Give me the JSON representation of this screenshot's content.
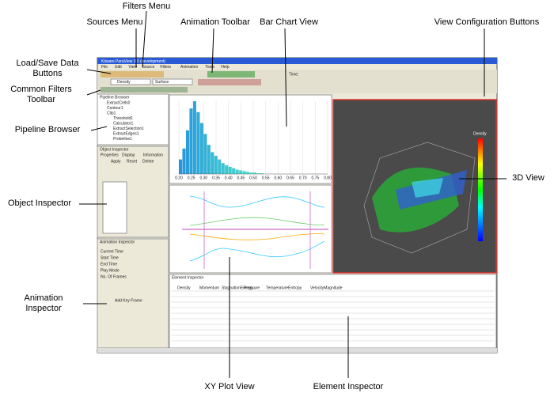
{
  "annotations": {
    "filters_menu": "Filters Menu",
    "sources_menu": "Sources Menu",
    "animation_toolbar": "Animation Toolbar",
    "bar_chart_view": "Bar Chart View",
    "view_config": "View Configuration Buttons",
    "load_save": "Load/Save Data Buttons",
    "common_filters": "Common Filters Toolbar",
    "pipeline_browser": "Pipeline Browser",
    "object_inspector": "Object Inspector",
    "view_3d": "3D View",
    "animation_inspector": "Animation Inspector",
    "xy_plot_view": "XY Plot View",
    "element_inspector": "Element Inspector"
  },
  "window": {
    "title": "Kitware ParaView 3.0 (development)",
    "menu": [
      "File",
      "Edit",
      "View",
      "Source",
      "Filters",
      "Animation",
      "Tools",
      "Help"
    ],
    "time_label": "Time:",
    "color_by": "Density",
    "representation": "Surface"
  },
  "pipeline_browser": {
    "title": "Pipeline Browser",
    "items": [
      "ExtractCells0",
      "Contour1",
      "Clip1",
      "Threshold1",
      "Calculator1",
      "ExtractSelection1",
      "ExtractEdges1",
      "Probeline1"
    ]
  },
  "object_inspector": {
    "title": "Object Inspector",
    "tabs": [
      "Properties",
      "Display",
      "Information"
    ],
    "buttons": [
      "Apply",
      "Reset",
      "Delete"
    ]
  },
  "animation_inspector": {
    "title": "Animation Inspector",
    "fields": [
      "Current Time",
      "Start Time",
      "End Time",
      "Play Mode",
      "No. Of Frames"
    ],
    "button": "Add Key Frame"
  },
  "element_inspector": {
    "title": "Element Inspector",
    "columns": [
      "Density",
      "Momentum",
      "StagnationEnergy",
      "Pressure",
      "Temperature",
      "Entropy",
      "VelocityMagnitude"
    ]
  },
  "bar_chart": {
    "values": [
      20,
      35,
      60,
      90,
      100,
      85,
      70,
      55,
      40,
      30,
      25,
      20,
      15,
      12,
      10,
      8,
      6,
      5,
      4,
      3,
      2,
      2,
      1,
      1
    ],
    "ylim": [
      0,
      100
    ],
    "xticks": [
      "0.20",
      "0.25",
      "0.30",
      "0.35",
      "0.40",
      "0.45",
      "0.50",
      "0.55",
      "0.60",
      "0.65",
      "0.70",
      "0.75",
      "0.80"
    ]
  },
  "view_3d": {
    "legend_title": "Density"
  }
}
